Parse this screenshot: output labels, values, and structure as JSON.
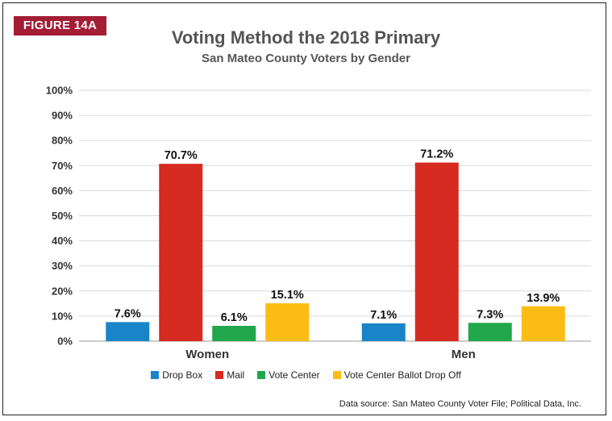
{
  "badge": "FIGURE 14A",
  "title": "Voting Method the 2018 Primary",
  "subtitle": "San Mateo County Voters by Gender",
  "source": "Data source: San Mateo County Voter File; Political Data, Inc.",
  "chart_data": {
    "type": "bar",
    "title": "Voting Method the 2018 Primary",
    "subtitle": "San Mateo County Voters by Gender",
    "categories": [
      "Women",
      "Men"
    ],
    "series": [
      {
        "name": "Drop Box",
        "values": [
          7.6,
          7.1
        ],
        "labels": [
          "7.6%",
          "7.1%"
        ],
        "color": "#1a84c8"
      },
      {
        "name": "Mail",
        "values": [
          70.7,
          71.2
        ],
        "labels": [
          "70.7%",
          "71.2%"
        ],
        "color": "#d62b20"
      },
      {
        "name": "Vote Center",
        "values": [
          6.1,
          7.3
        ],
        "labels": [
          "6.1%",
          "7.3%"
        ],
        "color": "#21a64b"
      },
      {
        "name": "Vote Center Ballot Drop Off",
        "values": [
          15.1,
          13.9
        ],
        "labels": [
          "15.1%",
          "13.9%"
        ],
        "color": "#fbbd14"
      }
    ],
    "yticks": [
      "0%",
      "10%",
      "20%",
      "30%",
      "40%",
      "50%",
      "60%",
      "70%",
      "80%",
      "90%",
      "100%"
    ],
    "ylim": [
      0,
      100
    ],
    "grid": true,
    "legend_position": "bottom"
  }
}
